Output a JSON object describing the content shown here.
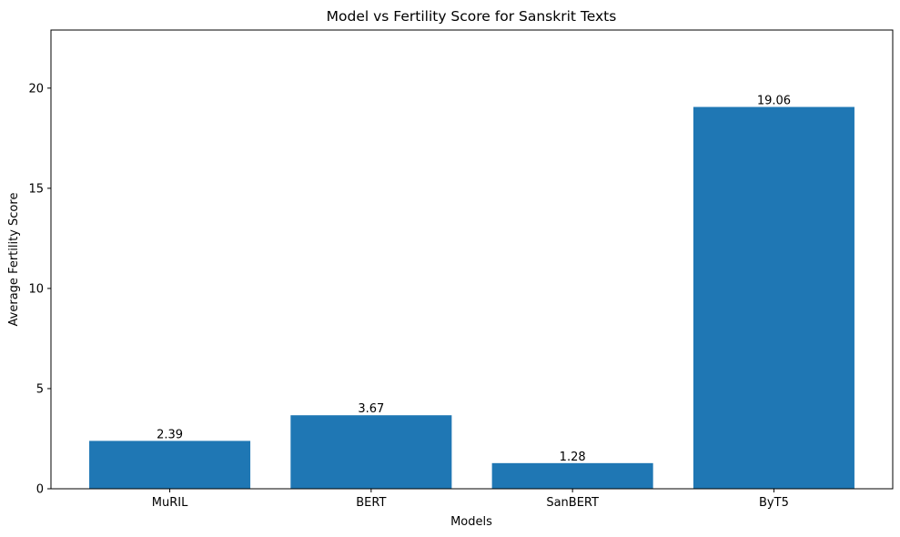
{
  "chart_data": {
    "type": "bar",
    "title": "Model vs Fertility Score for Sanskrit Texts",
    "xlabel": "Models",
    "ylabel": "Average Fertility Score",
    "categories": [
      "MuRIL",
      "BERT",
      "SanBERT",
      "ByT5"
    ],
    "values": [
      2.39,
      3.67,
      1.28,
      19.06
    ],
    "data_labels": [
      "2.39",
      "3.67",
      "1.28",
      "19.06"
    ],
    "ylim": [
      0,
      22.9
    ],
    "yticks": [
      0,
      5,
      10,
      15,
      20
    ],
    "ytick_labels": [
      "0",
      "5",
      "10",
      "15",
      "20"
    ],
    "bar_color": "#1f77b4",
    "grid": false,
    "legend": "none"
  }
}
